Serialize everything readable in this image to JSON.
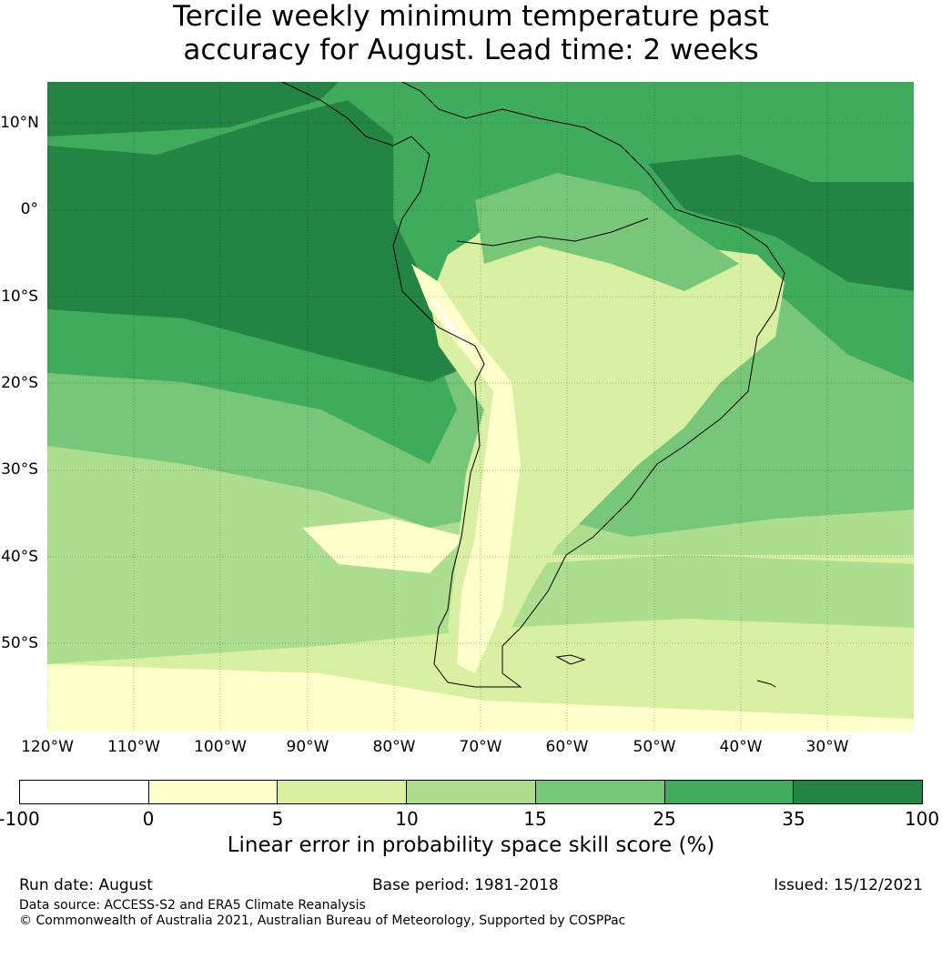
{
  "title_line1": "Tercile weekly minimum temperature past",
  "title_line2": "accuracy for August. Lead time: 2 weeks",
  "map": {
    "lat_labels": [
      "10°N",
      "0°",
      "10°S",
      "20°S",
      "30°S",
      "40°S",
      "50°S"
    ],
    "lon_labels": [
      "120°W",
      "110°W",
      "100°W",
      "90°W",
      "80°W",
      "70°W",
      "60°W",
      "50°W",
      "40°W",
      "30°W"
    ],
    "colors": {
      "c0": "#ffffff",
      "c1": "#ffffcc",
      "c2": "#d9f0a3",
      "c3": "#addd8e",
      "c4": "#78c679",
      "c5": "#41ab5d",
      "c6": "#238443"
    }
  },
  "colorbar": {
    "ticks": [
      "-100",
      "0",
      "5",
      "10",
      "15",
      "25",
      "35",
      "100"
    ],
    "label": "Linear error in probability space skill score (%)"
  },
  "footer": {
    "run_date": "Run date: August",
    "base_period": "Base period: 1981-2018",
    "issued": "Issued: 15/12/2021",
    "source": "Data source: ACCESS-S2 and ERA5 Climate Reanalysis",
    "copyright": "© Commonwealth of Australia 2021, Australian Bureau of Meteorology, Supported by COSPPac"
  }
}
